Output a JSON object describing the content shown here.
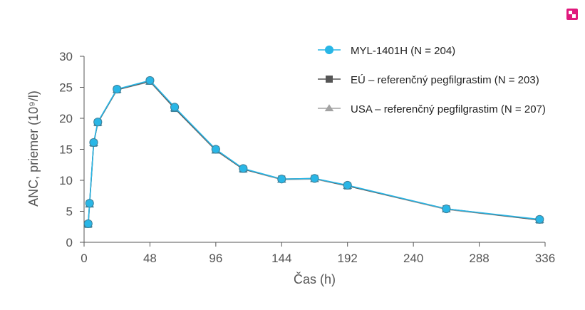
{
  "colors": {
    "badge": "#e0197d",
    "axis": "#555555",
    "series": [
      "#29b6e6",
      "#555555",
      "#a3a3a3"
    ]
  },
  "icons": {
    "corner": "expand-icon"
  },
  "chart_data": {
    "type": "line",
    "title": "",
    "xlabel": "Čas (h)",
    "ylabel": "ANC, priemer (10⁹/l)",
    "xlim": [
      0,
      336
    ],
    "ylim": [
      0,
      30
    ],
    "xticks": [
      0,
      48,
      96,
      144,
      192,
      240,
      288,
      336
    ],
    "yticks": [
      0,
      5,
      10,
      15,
      20,
      25,
      30
    ],
    "legend_position": "top-right",
    "grid": false,
    "x": [
      3,
      4,
      7,
      10,
      24,
      48,
      66,
      96,
      116,
      144,
      168,
      192,
      264,
      332
    ],
    "series": [
      {
        "name": "MYL-1401H (N = 204)",
        "marker": "circle",
        "values": [
          3.0,
          6.3,
          16.1,
          19.4,
          24.7,
          26.1,
          21.8,
          15.0,
          11.9,
          10.2,
          10.3,
          9.2,
          5.4,
          3.7
        ]
      },
      {
        "name": "EÚ – referenčný pegfilgrastim (N = 203)",
        "marker": "square",
        "values": [
          2.9,
          6.2,
          16.0,
          19.3,
          24.6,
          26.0,
          21.6,
          14.9,
          11.8,
          10.2,
          10.3,
          9.1,
          5.4,
          3.6
        ]
      },
      {
        "name": "USA – referenčný pegfilgrastim (N = 207)",
        "marker": "triangle",
        "values": [
          2.9,
          6.1,
          16.0,
          19.3,
          24.6,
          25.9,
          21.6,
          14.8,
          11.8,
          10.1,
          10.2,
          9.1,
          5.3,
          3.6
        ]
      }
    ]
  }
}
